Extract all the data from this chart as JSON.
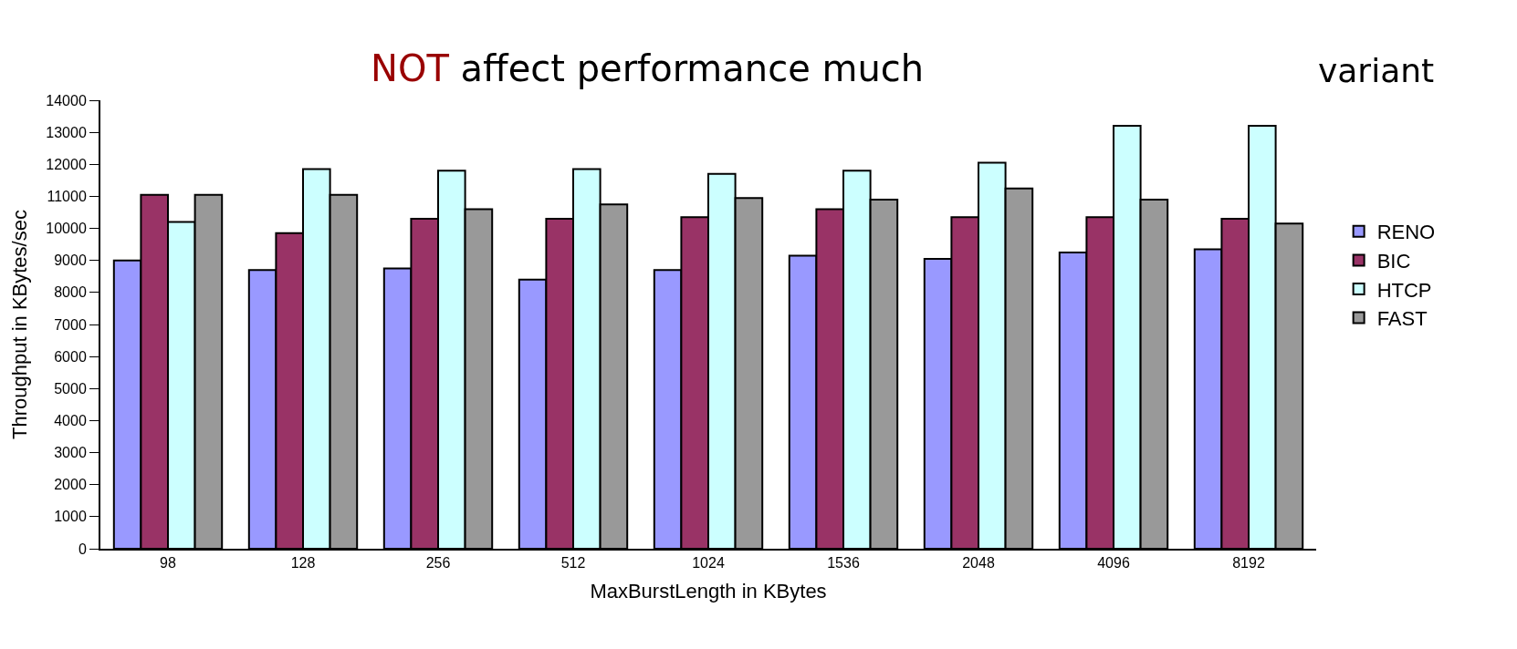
{
  "chart_data": {
    "type": "bar",
    "xlabel": "MaxBurstLength in KBytes",
    "ylabel": "Throughput in KBytes/sec",
    "annotations": [
      "NOT affect performance much",
      "variant"
    ],
    "categories": [
      "98",
      "128",
      "256",
      "512",
      "1024",
      "1536",
      "2048",
      "4096",
      "8192"
    ],
    "series": [
      {
        "name": "RENO",
        "color": "#9999ff",
        "values": [
          9000,
          8700,
          8750,
          8400,
          8700,
          9150,
          9050,
          9250,
          9350
        ]
      },
      {
        "name": "BIC",
        "color": "#993366",
        "values": [
          11050,
          9850,
          10300,
          10300,
          10350,
          10600,
          10350,
          10350,
          10300
        ]
      },
      {
        "name": "HTCP",
        "color": "#ccffff",
        "values": [
          10200,
          11850,
          11800,
          11850,
          11700,
          11800,
          12050,
          13200,
          13200
        ]
      },
      {
        "name": "FAST",
        "color": "#999999",
        "values": [
          11050,
          11050,
          10600,
          10750,
          10950,
          10900,
          11250,
          10900,
          10150
        ]
      }
    ],
    "ylim": [
      0,
      14000
    ],
    "yticks": [
      0,
      1000,
      2000,
      3000,
      4000,
      5000,
      6000,
      7000,
      8000,
      9000,
      10000,
      11000,
      12000,
      13000,
      14000
    ],
    "legend": "right"
  }
}
